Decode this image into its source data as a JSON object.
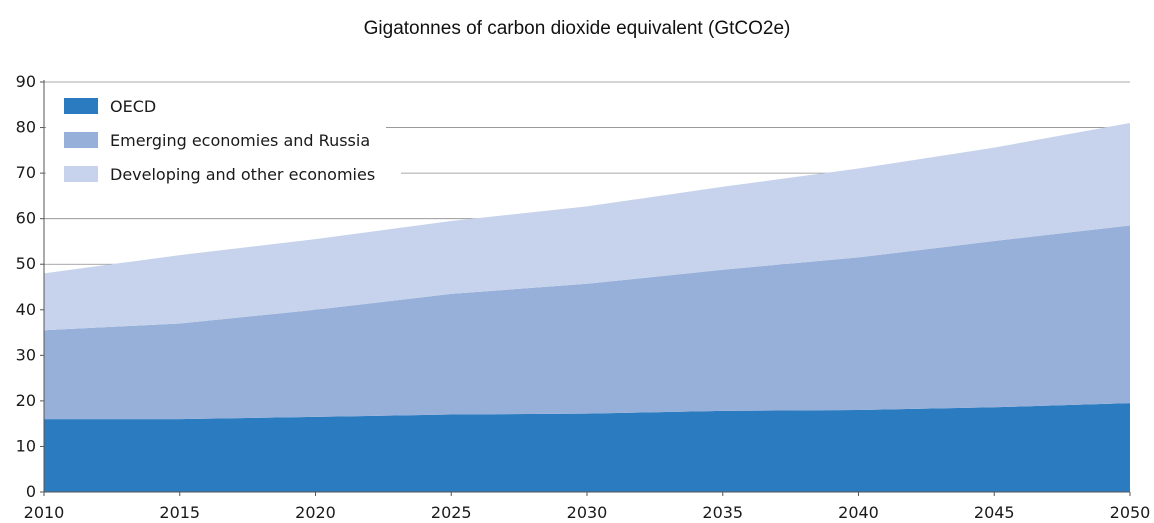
{
  "chart_data": {
    "type": "area",
    "stacked": true,
    "title": "Gigatonnes of carbon dioxide equivalent (GtCO2e)",
    "xlabel": "",
    "ylabel": "",
    "xlim": [
      2010,
      2050
    ],
    "ylim": [
      0,
      90
    ],
    "x_ticks": [
      2010,
      2015,
      2020,
      2025,
      2030,
      2035,
      2040,
      2045,
      2050
    ],
    "y_ticks": [
      0,
      10,
      20,
      30,
      40,
      50,
      60,
      70,
      80,
      90
    ],
    "gridlines": "horizontal",
    "legend_position": "top-left",
    "x": [
      2010,
      2015,
      2020,
      2025,
      2030,
      2035,
      2040,
      2045,
      2050
    ],
    "series": [
      {
        "name": "OECD",
        "color": "#2a7bbf",
        "values": [
          16,
          16,
          16.5,
          17,
          17.2,
          17.8,
          18,
          18.6,
          19.5
        ]
      },
      {
        "name": "Emerging economies and Russia",
        "color": "#97b0da",
        "values": [
          19.5,
          21,
          23.5,
          26.5,
          28.5,
          31,
          33.5,
          36.5,
          39
        ]
      },
      {
        "name": "Developing and other economies",
        "color": "#c7d3ec",
        "values": [
          12.5,
          15,
          15.5,
          16,
          17,
          18.2,
          19.5,
          20.5,
          22.5
        ]
      }
    ]
  }
}
